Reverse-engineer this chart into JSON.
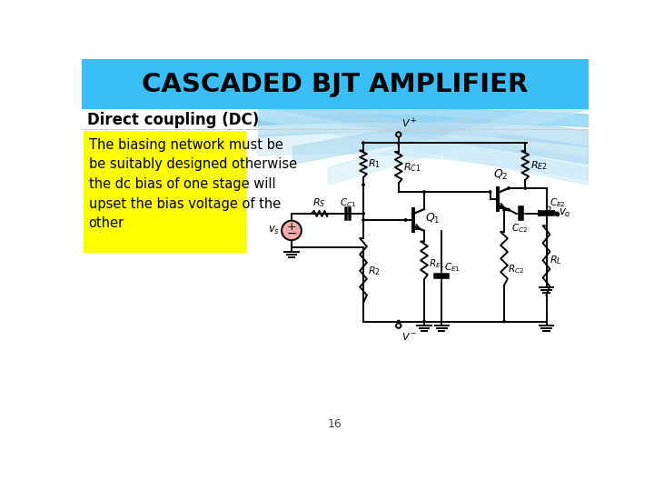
{
  "title": "CASCADED BJT AMPLIFIER",
  "title_bg": "#3BBEF5",
  "title_color": "#000000",
  "subtitle": "Direct coupling (DC)",
  "body_bg": "#FFFFFF",
  "text_box_bg": "#FFFF00",
  "text_box_text": "The biasing network must be\nbe suitably designed otherwise\nthe dc bias of one stage will\nupset the bias voltage of the\nother",
  "text_box_color": "#000000",
  "page_number": "16",
  "circuit_color": "#000000",
  "vs_fill": "#F2AAAA",
  "wave_color1": "#7ECEF4",
  "wave_color2": "#A8D8F0",
  "wave_color3": "#C5E8F8"
}
